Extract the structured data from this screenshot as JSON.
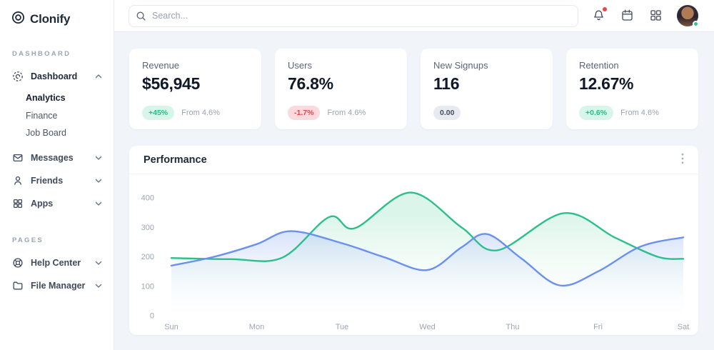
{
  "brand": {
    "name": "Clonify"
  },
  "topbar": {
    "search_placeholder": "Search...",
    "icons": [
      "bell-icon",
      "calendar-icon",
      "apps-grid-icon",
      "avatar"
    ]
  },
  "sidebar": {
    "sections": [
      {
        "label": "DASHBOARD",
        "items": [
          {
            "label": "Dashboard",
            "icon": "disc-icon",
            "expanded": true,
            "children": [
              {
                "label": "Analytics",
                "active": true
              },
              {
                "label": "Finance",
                "active": false
              },
              {
                "label": "Job Board",
                "active": false
              }
            ]
          },
          {
            "label": "Messages",
            "icon": "envelope-icon",
            "expanded": false
          },
          {
            "label": "Friends",
            "icon": "person-icon",
            "expanded": false
          },
          {
            "label": "Apps",
            "icon": "grid-icon",
            "expanded": false
          }
        ]
      },
      {
        "label": "PAGES",
        "items": [
          {
            "label": "Help Center",
            "icon": "lifebuoy-icon",
            "expanded": false
          },
          {
            "label": "File Manager",
            "icon": "folder-icon",
            "expanded": false
          }
        ]
      }
    ]
  },
  "stats": [
    {
      "title": "Revenue",
      "value": "$56,945",
      "badge": "+45%",
      "badge_type": "positive",
      "note": "From 4.6%"
    },
    {
      "title": "Users",
      "value": "76.8%",
      "badge": "-1.7%",
      "badge_type": "negative",
      "note": "From 4.6%"
    },
    {
      "title": "New Signups",
      "value": "116",
      "badge": "0.00",
      "badge_type": "neutral",
      "note": ""
    },
    {
      "title": "Retention",
      "value": "12.67%",
      "badge": "+0.6%",
      "badge_type": "positive",
      "note": "From 4.6%"
    }
  ],
  "colors": {
    "positive": "#1fbf8b",
    "negative": "#e8434f",
    "alert_dot": "#ef4444",
    "status_online": "#2ec98b",
    "text_muted": "#9aa5b4"
  },
  "chart_data": {
    "type": "area",
    "title": "Performance",
    "x_labels": [
      "Sun",
      "Mon",
      "Tue",
      "Wed",
      "Thu",
      "Fri",
      "Sat"
    ],
    "y_ticks": [
      0,
      100,
      200,
      300,
      400
    ],
    "ylim": [
      0,
      430
    ],
    "grid": false,
    "legend": "none",
    "series": [
      {
        "name": "series-green",
        "color": "#2cbf8c",
        "fill_from": "rgba(168,230,203,0.40)",
        "fill_to": "rgba(247,252,250,0.05)",
        "points": [
          [
            0,
            196
          ],
          [
            0.7,
            192
          ],
          [
            1.3,
            197
          ],
          [
            1.85,
            335
          ],
          [
            2.15,
            297
          ],
          [
            2.8,
            418
          ],
          [
            3.4,
            300
          ],
          [
            3.82,
            222
          ],
          [
            4.6,
            348
          ],
          [
            5.2,
            265
          ],
          [
            5.7,
            200
          ],
          [
            6,
            193
          ]
        ]
      },
      {
        "name": "series-blue",
        "color": "#6a90f0",
        "fill_from": "rgba(146,176,240,0.50)",
        "fill_to": "rgba(255,255,255,0.05)",
        "points": [
          [
            0,
            170
          ],
          [
            0.5,
            200
          ],
          [
            1,
            243
          ],
          [
            1.4,
            287
          ],
          [
            2,
            246
          ],
          [
            2.5,
            198
          ],
          [
            3,
            155
          ],
          [
            3.4,
            232
          ],
          [
            3.7,
            277
          ],
          [
            4.1,
            195
          ],
          [
            4.55,
            103
          ],
          [
            5,
            150
          ],
          [
            5.5,
            235
          ],
          [
            6,
            266
          ]
        ]
      }
    ]
  }
}
